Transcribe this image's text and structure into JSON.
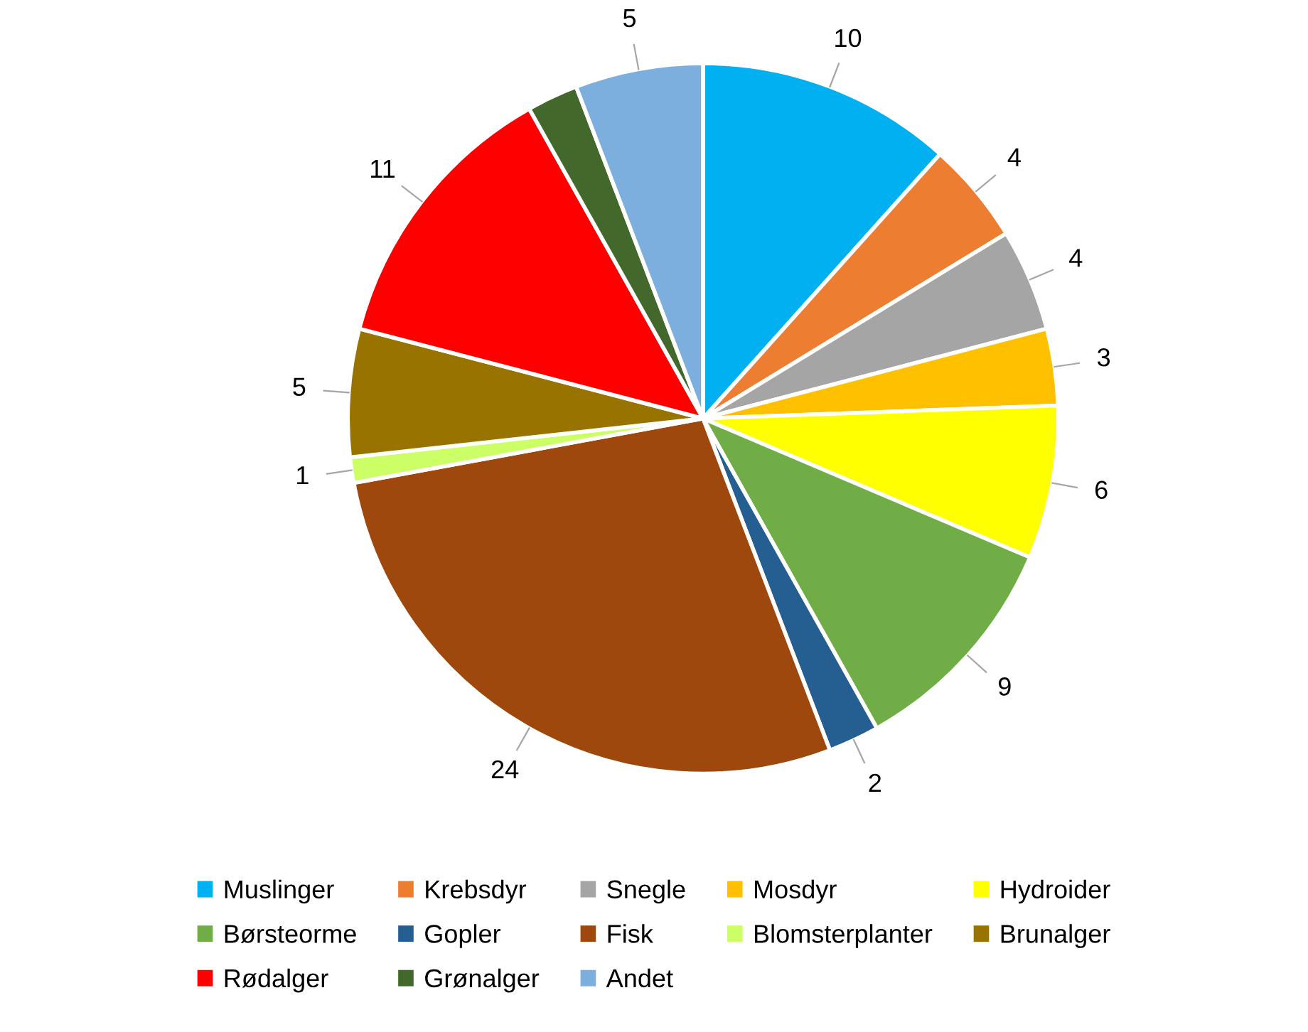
{
  "chart_data": {
    "type": "pie",
    "categories": [
      "Muslinger",
      "Krebsdyr",
      "Snegle",
      "Mosdyr",
      "Hydroider",
      "Børsteorme",
      "Gopler",
      "Fisk",
      "Blomsterplanter",
      "Brunalger",
      "Rødalger",
      "Grønalger",
      "Andet"
    ],
    "values": [
      10,
      4,
      4,
      3,
      6,
      9,
      2,
      24,
      1,
      5,
      11,
      2,
      5
    ],
    "value_labels": [
      "10",
      "4",
      "4",
      "3",
      "6",
      "9",
      "2",
      "24",
      "1",
      "5",
      "11",
      null,
      "5"
    ],
    "colors": [
      "#00b0f0",
      "#ed7d31",
      "#a5a5a5",
      "#ffc000",
      "#ffff00",
      "#70ad47",
      "#255e91",
      "#9e480e",
      "#ccff66",
      "#997300",
      "#ff0000",
      "#43682b",
      "#7cafdd"
    ],
    "legend": "bottom"
  }
}
